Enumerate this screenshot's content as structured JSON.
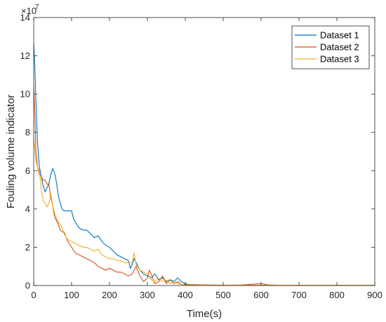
{
  "chart_data": {
    "type": "line",
    "title": "",
    "xlabel": "Time(s)",
    "ylabel": "Fouling volume indicator",
    "y_exponent_label": "×10",
    "y_exponent_power": "7",
    "xlim": [
      0,
      900
    ],
    "ylim": [
      0,
      140000000
    ],
    "x_ticks": [
      0,
      100,
      200,
      300,
      400,
      500,
      600,
      700,
      800,
      900
    ],
    "y_ticks": [
      0,
      20000000,
      40000000,
      60000000,
      80000000,
      100000000,
      120000000,
      140000000
    ],
    "x_tick_labels": [
      "0",
      "100",
      "200",
      "300",
      "400",
      "500",
      "600",
      "700",
      "800",
      "900"
    ],
    "y_tick_labels": [
      "0",
      "2",
      "4",
      "6",
      "8",
      "10",
      "12",
      "14"
    ],
    "grid": false,
    "legend_position": "top-right",
    "series": [
      {
        "name": "Dataset 1",
        "color": "#0072BD",
        "points": [
          [
            0,
            126000000
          ],
          [
            3,
            115000000
          ],
          [
            6,
            96000000
          ],
          [
            10,
            75000000
          ],
          [
            15,
            62000000
          ],
          [
            20,
            57000000
          ],
          [
            25,
            52000000
          ],
          [
            30,
            49000000
          ],
          [
            35,
            51000000
          ],
          [
            40,
            53000000
          ],
          [
            45,
            58000000
          ],
          [
            50,
            61000000
          ],
          [
            55,
            59000000
          ],
          [
            60,
            54000000
          ],
          [
            65,
            47000000
          ],
          [
            70,
            43000000
          ],
          [
            75,
            40000000
          ],
          [
            80,
            39000000
          ],
          [
            90,
            39000000
          ],
          [
            100,
            39000000
          ],
          [
            105,
            35000000
          ],
          [
            110,
            33000000
          ],
          [
            120,
            30000000
          ],
          [
            130,
            29000000
          ],
          [
            140,
            29000000
          ],
          [
            150,
            27000000
          ],
          [
            160,
            25000000
          ],
          [
            170,
            26000000
          ],
          [
            180,
            23000000
          ],
          [
            190,
            21000000
          ],
          [
            200,
            20000000
          ],
          [
            210,
            18000000
          ],
          [
            220,
            16000000
          ],
          [
            230,
            15000000
          ],
          [
            240,
            14000000
          ],
          [
            250,
            13000000
          ],
          [
            255,
            9000000
          ],
          [
            260,
            11000000
          ],
          [
            265,
            14000000
          ],
          [
            270,
            12000000
          ],
          [
            280,
            8000000
          ],
          [
            290,
            6000000
          ],
          [
            300,
            5000000
          ],
          [
            310,
            4000000
          ],
          [
            320,
            6000000
          ],
          [
            330,
            3000000
          ],
          [
            340,
            4000000
          ],
          [
            350,
            2000000
          ],
          [
            360,
            3000000
          ],
          [
            370,
            2000000
          ],
          [
            380,
            4000000
          ],
          [
            390,
            2000000
          ],
          [
            400,
            1000000
          ],
          [
            410,
            500000
          ],
          [
            450,
            300000
          ],
          [
            500,
            200000
          ],
          [
            550,
            200000
          ],
          [
            600,
            200000
          ],
          [
            650,
            100000
          ],
          [
            700,
            100000
          ],
          [
            800,
            100000
          ],
          [
            900,
            100000
          ]
        ]
      },
      {
        "name": "Dataset 2",
        "color": "#D95319",
        "points": [
          [
            0,
            104000000
          ],
          [
            3,
            90000000
          ],
          [
            6,
            70000000
          ],
          [
            10,
            62000000
          ],
          [
            15,
            58000000
          ],
          [
            20,
            57000000
          ],
          [
            25,
            55000000
          ],
          [
            30,
            55000000
          ],
          [
            35,
            53000000
          ],
          [
            40,
            53000000
          ],
          [
            45,
            46000000
          ],
          [
            50,
            42000000
          ],
          [
            55,
            36000000
          ],
          [
            60,
            34000000
          ],
          [
            65,
            32000000
          ],
          [
            70,
            29000000
          ],
          [
            75,
            28000000
          ],
          [
            80,
            28000000
          ],
          [
            90,
            23000000
          ],
          [
            100,
            20000000
          ],
          [
            110,
            17000000
          ],
          [
            120,
            16000000
          ],
          [
            130,
            15000000
          ],
          [
            140,
            14000000
          ],
          [
            150,
            13000000
          ],
          [
            160,
            12000000
          ],
          [
            170,
            10000000
          ],
          [
            180,
            9000000
          ],
          [
            190,
            8000000
          ],
          [
            200,
            9000000
          ],
          [
            210,
            8000000
          ],
          [
            220,
            7000000
          ],
          [
            230,
            7000000
          ],
          [
            240,
            6000000
          ],
          [
            250,
            5000000
          ],
          [
            260,
            6000000
          ],
          [
            270,
            10000000
          ],
          [
            280,
            5000000
          ],
          [
            290,
            2000000
          ],
          [
            300,
            4000000
          ],
          [
            305,
            8000000
          ],
          [
            310,
            6000000
          ],
          [
            320,
            1000000
          ],
          [
            330,
            2000000
          ],
          [
            340,
            5000000
          ],
          [
            350,
            1000000
          ],
          [
            360,
            3000000
          ],
          [
            370,
            1000000
          ],
          [
            380,
            2000000
          ],
          [
            390,
            500000
          ],
          [
            400,
            500000
          ],
          [
            450,
            300000
          ],
          [
            500,
            200000
          ],
          [
            550,
            300000
          ],
          [
            600,
            1000000
          ],
          [
            620,
            300000
          ],
          [
            650,
            200000
          ],
          [
            700,
            100000
          ],
          [
            800,
            100000
          ],
          [
            900,
            100000
          ]
        ]
      },
      {
        "name": "Dataset 3",
        "color": "#EDB120",
        "points": [
          [
            0,
            77000000
          ],
          [
            3,
            72000000
          ],
          [
            6,
            65000000
          ],
          [
            10,
            62000000
          ],
          [
            15,
            60000000
          ],
          [
            20,
            50000000
          ],
          [
            25,
            44000000
          ],
          [
            30,
            43000000
          ],
          [
            35,
            41000000
          ],
          [
            40,
            43000000
          ],
          [
            45,
            48000000
          ],
          [
            50,
            42000000
          ],
          [
            55,
            38000000
          ],
          [
            60,
            35000000
          ],
          [
            65,
            33000000
          ],
          [
            70,
            32000000
          ],
          [
            75,
            30000000
          ],
          [
            80,
            27000000
          ],
          [
            90,
            24000000
          ],
          [
            100,
            23000000
          ],
          [
            110,
            22000000
          ],
          [
            120,
            21000000
          ],
          [
            130,
            20000000
          ],
          [
            140,
            20000000
          ],
          [
            150,
            19000000
          ],
          [
            160,
            18000000
          ],
          [
            170,
            19000000
          ],
          [
            180,
            16000000
          ],
          [
            190,
            15000000
          ],
          [
            200,
            14000000
          ],
          [
            210,
            14000000
          ],
          [
            220,
            13000000
          ],
          [
            230,
            13000000
          ],
          [
            240,
            12000000
          ],
          [
            250,
            12000000
          ],
          [
            260,
            12000000
          ],
          [
            265,
            17000000
          ],
          [
            270,
            11000000
          ],
          [
            280,
            8000000
          ],
          [
            290,
            7000000
          ],
          [
            300,
            6000000
          ],
          [
            305,
            5000000
          ],
          [
            310,
            3000000
          ],
          [
            320,
            2000000
          ],
          [
            330,
            4000000
          ],
          [
            340,
            2000000
          ],
          [
            350,
            3000000
          ],
          [
            360,
            1000000
          ],
          [
            370,
            2000000
          ],
          [
            380,
            1000000
          ],
          [
            390,
            500000
          ],
          [
            400,
            300000
          ],
          [
            450,
            200000
          ],
          [
            500,
            100000
          ],
          [
            600,
            100000
          ],
          [
            700,
            100000
          ],
          [
            800,
            100000
          ],
          [
            900,
            100000
          ]
        ]
      }
    ]
  }
}
